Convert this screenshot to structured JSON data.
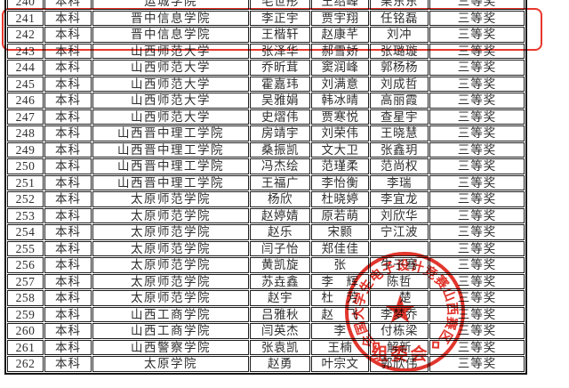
{
  "table": {
    "column_keys": [
      "row-number",
      "level",
      "school",
      "member-1",
      "member-2",
      "member-3",
      "award"
    ],
    "rows": [
      [
        "240",
        "本科",
        "运城学院",
        "毛世彤",
        "王绍峰",
        "栗东东",
        "三等奖"
      ],
      [
        "241",
        "本科",
        "晋中信息学院",
        "李正宇",
        "贾宇翔",
        "任铭磊",
        "三等奖"
      ],
      [
        "242",
        "本科",
        "晋中信息学院",
        "王楷轩",
        "赵康芊",
        "刘冲",
        "三等奖"
      ],
      [
        "243",
        "本科",
        "山西师范大学",
        "张泽华",
        "郝雪娇",
        "张璐璇",
        "三等奖"
      ],
      [
        "244",
        "本科",
        "山西师范大学",
        "乔昕茸",
        "窦润峰",
        "郭杨杨",
        "三等奖"
      ],
      [
        "245",
        "本科",
        "山西师范大学",
        "霍嘉玮",
        "刘满意",
        "刘成哲",
        "三等奖"
      ],
      [
        "246",
        "本科",
        "山西师范大学",
        "吴雅娟",
        "韩冰晴",
        "高丽霞",
        "三等奖"
      ],
      [
        "247",
        "本科",
        "山西师范大学",
        "史熠伟",
        "贾寒悦",
        "查星宇",
        "三等奖"
      ],
      [
        "248",
        "本科",
        "山西晋中理工学院",
        "房靖宇",
        "刘荣伟",
        "王晓慧",
        "三等奖"
      ],
      [
        "249",
        "本科",
        "山西晋中理工学院",
        "桑振凯",
        "文大卫",
        "张鑫玥",
        "三等奖"
      ],
      [
        "250",
        "本科",
        "山西晋中理工学院",
        "冯杰绘",
        "范瑾柔",
        "范尚权",
        "三等奖"
      ],
      [
        "251",
        "本科",
        "山西晋中理工学院",
        "王福广",
        "李怡衡",
        "李瑞",
        "三等奖"
      ],
      [
        "252",
        "本科",
        "太原师范学院",
        "杨欣",
        "杜晓婷",
        "李宜龙",
        "三等奖"
      ],
      [
        "253",
        "本科",
        "太原师范学院",
        "赵婷婧",
        "原若萌",
        "刘欣华",
        "三等奖"
      ],
      [
        "254",
        "本科",
        "太原师范学院",
        "赵乐",
        "宋颢",
        "宁江波",
        "三等奖"
      ],
      [
        "255",
        "本科",
        "太原师范学院",
        "闫子怡",
        "郑佳佳",
        "",
        "三等奖"
      ],
      [
        "256",
        "本科",
        "太原师范学院",
        "黄凯旋",
        "张　",
        "牛子骞",
        "三等奖"
      ],
      [
        "257",
        "本科",
        "太原师范学院",
        "苏垚鑫",
        "李　辉",
        "陈哲",
        "三等奖"
      ],
      [
        "258",
        "本科",
        "太原师范学院",
        "赵宇",
        "杜　芳",
        "　楚",
        "三等奖"
      ],
      [
        "259",
        "本科",
        "山西工商学院",
        "吕雅秋",
        "赵　飞",
        "李梦乔",
        "三等奖"
      ],
      [
        "260",
        "本科",
        "山西工商学院",
        "闫英杰",
        "李　",
        "付栋梁",
        "三等奖"
      ],
      [
        "261",
        "本科",
        "山西警察学院",
        "张袁凯",
        "王楠",
        "解新　",
        "三等奖"
      ],
      [
        "262",
        "本科",
        "太原学院",
        "赵勇",
        "叶宗文",
        "郭欣伟",
        "三等奖"
      ]
    ]
  },
  "highlight": {
    "highlighted_rows": [
      "241",
      "242"
    ],
    "border_color": "#e8372c"
  },
  "stamp": {
    "arc_text": "全国大学生电子设计竞赛山西赛区",
    "bottom_text": "组委会",
    "star_glyph": "★",
    "color": "#df261d"
  },
  "colors": {
    "table_border": "#1c1c1c",
    "text": "#2e2e2e",
    "background": "#ffffff"
  }
}
